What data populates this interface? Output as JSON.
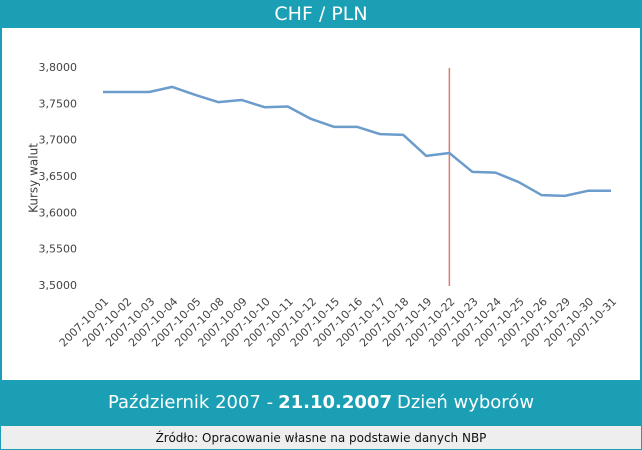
{
  "chart_data": {
    "type": "line",
    "title": "CHF / PLN",
    "y_label": "Kursy walut",
    "categories": [
      "2007-10-01",
      "2007-10-02",
      "2007-10-03",
      "2007-10-04",
      "2007-10-05",
      "2007-10-08",
      "2007-10-09",
      "2007-10-10",
      "2007-10-11",
      "2007-10-12",
      "2007-10-15",
      "2007-10-16",
      "2007-10-17",
      "2007-10-18",
      "2007-10-19",
      "2007-10-22",
      "2007-10-23",
      "2007-10-24",
      "2007-10-25",
      "2007-10-26",
      "2007-10-29",
      "2007-10-30",
      "2007-10-31"
    ],
    "values": [
      3.767,
      3.767,
      3.767,
      3.774,
      3.763,
      3.753,
      3.756,
      3.746,
      3.747,
      3.73,
      3.719,
      3.719,
      3.709,
      3.708,
      3.679,
      3.683,
      3.657,
      3.656,
      3.643,
      3.625,
      3.624,
      3.631,
      3.631
    ],
    "color": "#6b9ccb",
    "ylim": [
      3.5,
      3.8
    ],
    "yticks": [
      {
        "value": 3.5,
        "label": "3,5000"
      },
      {
        "value": 3.55,
        "label": "3,5500"
      },
      {
        "value": 3.6,
        "label": "3,6000"
      },
      {
        "value": 3.65,
        "label": "3,6500"
      },
      {
        "value": 3.7,
        "label": "3,7000"
      },
      {
        "value": 3.75,
        "label": "3,7500"
      },
      {
        "value": 3.8,
        "label": "3,8000"
      }
    ],
    "marker_category": "2007-10-22",
    "marker_color": "#e07a6e",
    "caption": {
      "prefix": "Październik 2007 -",
      "date": "21.10.2007",
      "suffix": "Dzień wyborów"
    },
    "source": "Źródło: Opracowanie własne na podstawie danych NBP"
  }
}
